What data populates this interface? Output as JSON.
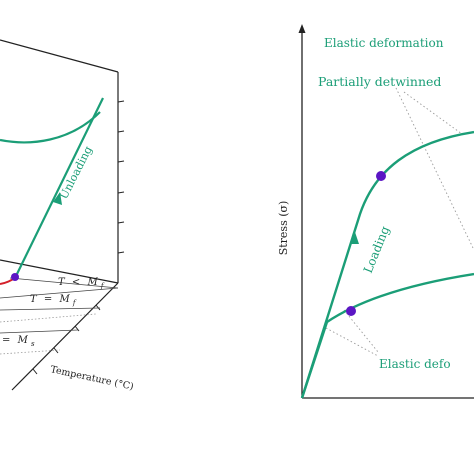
{
  "colors": {
    "curve": "#1b9e77",
    "dot": "#5b16c4",
    "red": "#d4202a",
    "axis": "#222222",
    "guide": "#9a9a9a"
  },
  "left_panel": {
    "unloading_label": "Unloading",
    "temp_lines": [
      {
        "lhs": "T",
        "op": "<",
        "rhs": "M",
        "sub": "f"
      },
      {
        "lhs": "T",
        "op": "=",
        "rhs": "M",
        "sub": "f"
      },
      {
        "lhs": "",
        "op": "=",
        "rhs": "M",
        "sub": "s"
      }
    ],
    "temperature_axis": "Temperature (°C)"
  },
  "right_panel": {
    "y_axis_label": "Stress (σ)",
    "loading_label": "Loading",
    "annotations": {
      "elastic_top": "Elastic deformation",
      "partially": "Partially detwinned",
      "elastic_bottom": "Elastic defo"
    }
  }
}
